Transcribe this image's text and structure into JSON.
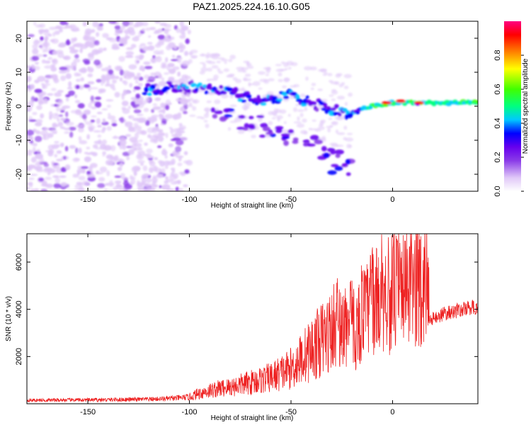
{
  "title": "PAZ1.2025.224.16.10.G05",
  "chart_data": [
    {
      "type": "heatmap",
      "xlabel": "Height of straight line (km)",
      "ylabel": "Frequency (Hz)",
      "xlim": [
        -180,
        42
      ],
      "ylim": [
        -25,
        25
      ],
      "xticks": [
        -150,
        -100,
        -50,
        0
      ],
      "yticks": [
        -20,
        -10,
        0,
        10,
        20
      ],
      "colorbar": {
        "label": "Normalized spectral amplitude",
        "range": [
          0,
          1
        ],
        "ticks": [
          0.0,
          0.2,
          0.4,
          0.6,
          0.8
        ],
        "colormap": [
          "#ffffff",
          "#e0c8f8",
          "#8a3be8",
          "#6600ee",
          "#0000ff",
          "#00c8ff",
          "#00ff80",
          "#40ff00",
          "#ffff00",
          "#ff8000",
          "#ff0000",
          "#ff0080"
        ]
      },
      "ridge": [
        {
          "x": -120,
          "y": 5
        },
        {
          "x": -100,
          "y": 6
        },
        {
          "x": -90,
          "y": 5
        },
        {
          "x": -80,
          "y": 4
        },
        {
          "x": -70,
          "y": 2
        },
        {
          "x": -60,
          "y": 2
        },
        {
          "x": -50,
          "y": 3
        },
        {
          "x": -40,
          "y": 1
        },
        {
          "x": -30,
          "y": -1
        },
        {
          "x": -20,
          "y": -2
        },
        {
          "x": -10,
          "y": 0
        },
        {
          "x": 0,
          "y": 1
        },
        {
          "x": 10,
          "y": 1
        },
        {
          "x": 20,
          "y": 1
        },
        {
          "x": 30,
          "y": 1
        },
        {
          "x": 42,
          "y": 1
        }
      ],
      "lower_branch": [
        {
          "x": -85,
          "y": -2
        },
        {
          "x": -70,
          "y": -5
        },
        {
          "x": -60,
          "y": -7
        },
        {
          "x": -50,
          "y": -9
        },
        {
          "x": -40,
          "y": -11
        },
        {
          "x": -30,
          "y": -14
        },
        {
          "x": -25,
          "y": -18
        }
      ]
    },
    {
      "type": "line",
      "xlabel": "Height of straight line (km)",
      "ylabel": "SNR (10 * v/v)",
      "xlim": [
        -180,
        42
      ],
      "ylim": [
        0,
        7200
      ],
      "xticks": [
        -150,
        -100,
        -50,
        0
      ],
      "yticks": [
        2000,
        4000,
        6000
      ],
      "color": "#ee2222",
      "series": [
        {
          "x": [
            -180,
            -170,
            -160,
            -150,
            -140,
            -130,
            -120,
            -110,
            -100,
            -95,
            -90,
            -85,
            -80,
            -75,
            -70,
            -65,
            -60,
            -55,
            -50,
            -45,
            -40,
            -35,
            -30,
            -27,
            -25,
            -22,
            -20,
            -18,
            -15,
            -13,
            -10,
            -8,
            -5,
            -2,
            0,
            3,
            5,
            8,
            10,
            13,
            15,
            17,
            18,
            20,
            25,
            30,
            35,
            40,
            42
          ],
          "y": [
            150,
            150,
            160,
            160,
            170,
            180,
            190,
            220,
            280,
            450,
            550,
            650,
            700,
            800,
            900,
            1000,
            1100,
            1300,
            1500,
            1900,
            2300,
            2700,
            3100,
            3600,
            3200,
            3300,
            3500,
            3000,
            4000,
            3800,
            4600,
            4300,
            4900,
            4500,
            4700,
            4800,
            4600,
            4900,
            4900,
            5100,
            5200,
            5300,
            3500,
            3600,
            3800,
            3900,
            4000,
            4100,
            4050
          ]
        }
      ]
    }
  ]
}
